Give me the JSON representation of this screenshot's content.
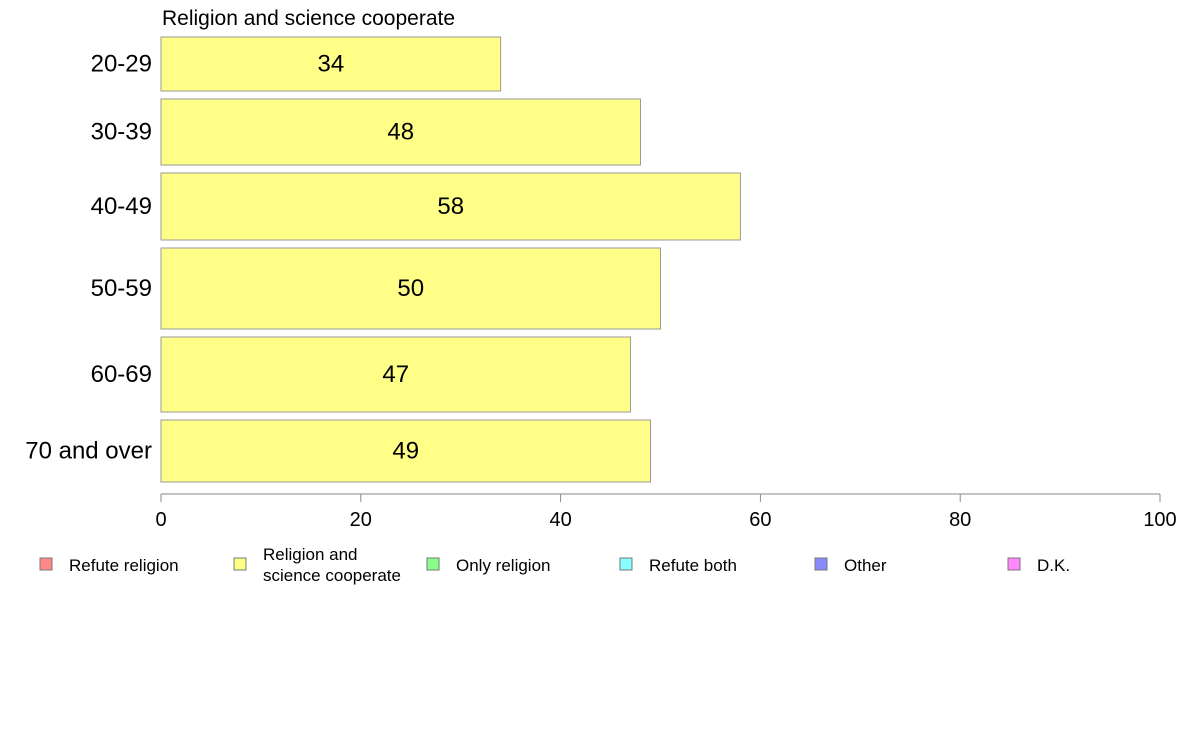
{
  "chart_data": {
    "type": "bar",
    "orientation": "horizontal",
    "title": "Religion and science cooperate",
    "categories": [
      "20-29",
      "30-39",
      "40-49",
      "50-59",
      "60-69",
      "70 and over"
    ],
    "series": [
      {
        "name": "Religion and science cooperate",
        "color": "#ffff88",
        "values": [
          34,
          48,
          58,
          50,
          47,
          49
        ]
      }
    ],
    "xlim": [
      0,
      100
    ],
    "xticks": [
      0,
      20,
      40,
      60,
      80,
      100
    ],
    "grid": false,
    "legend_position": "bottom",
    "legend": [
      {
        "lines": [
          "Refute religion"
        ],
        "color": "#ff8888"
      },
      {
        "lines": [
          "Religion and",
          "science cooperate"
        ],
        "color": "#ffff88"
      },
      {
        "lines": [
          "Only religion"
        ],
        "color": "#88ff88"
      },
      {
        "lines": [
          "Refute both"
        ],
        "color": "#88ffff"
      },
      {
        "lines": [
          "Other"
        ],
        "color": "#8888ff"
      },
      {
        "lines": [
          "D.K."
        ],
        "color": "#ff88ff"
      }
    ]
  }
}
